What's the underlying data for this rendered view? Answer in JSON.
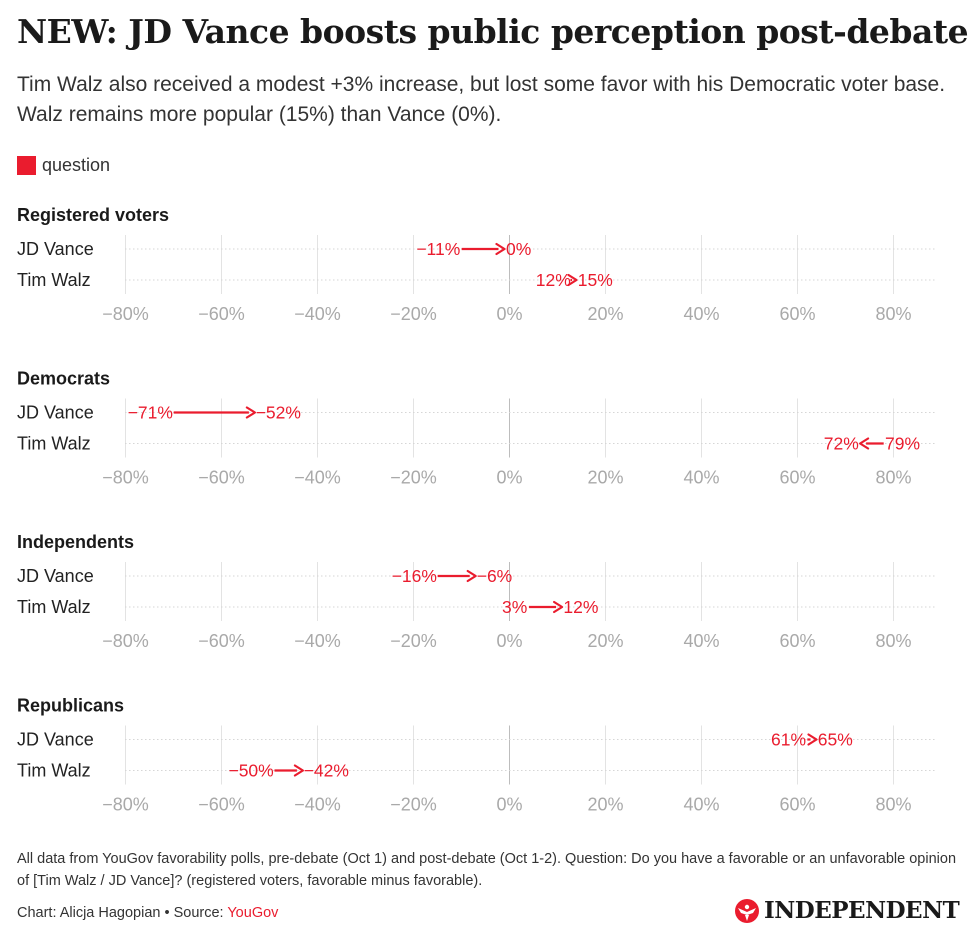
{
  "header": {
    "title": "NEW: JD Vance boosts public perception post-debate",
    "subtitle": "Tim Walz also received a modest +3% increase, but lost some favor with his Democratic voter base. Walz remains more popular (15%) than Vance (0%)."
  },
  "legend": {
    "label": "question"
  },
  "chart_data": {
    "type": "arrow-dot",
    "series_color": "#ea1c2e",
    "x_ticks": [
      -80,
      -60,
      -40,
      -20,
      0,
      20,
      40,
      60,
      80
    ],
    "x_tick_labels": [
      "−80%",
      "−60%",
      "−40%",
      "−20%",
      "0%",
      "20%",
      "40%",
      "60%",
      "80%"
    ],
    "xlim": [
      -83,
      88
    ],
    "panels": [
      {
        "title": "Registered voters",
        "rows": [
          {
            "label": "JD Vance",
            "from": -11,
            "to": 0,
            "from_label": "−11%",
            "to_label": "0%"
          },
          {
            "label": "Tim Walz",
            "from": 12,
            "to": 15,
            "from_label": "12%",
            "to_label": "15%"
          }
        ]
      },
      {
        "title": "Democrats",
        "rows": [
          {
            "label": "JD Vance",
            "from": -71,
            "to": -52,
            "from_label": "−71%",
            "to_label": "−52%"
          },
          {
            "label": "Tim Walz",
            "from": 79,
            "to": 72,
            "from_label": "79%",
            "to_label": "72%"
          }
        ]
      },
      {
        "title": "Independents",
        "rows": [
          {
            "label": "JD Vance",
            "from": -16,
            "to": -6,
            "from_label": "−16%",
            "to_label": "−6%"
          },
          {
            "label": "Tim Walz",
            "from": 3,
            "to": 12,
            "from_label": "3%",
            "to_label": "12%"
          }
        ]
      },
      {
        "title": "Republicans",
        "rows": [
          {
            "label": "JD Vance",
            "from": 61,
            "to": 65,
            "from_label": "61%",
            "to_label": "65%"
          },
          {
            "label": "Tim Walz",
            "from": -50,
            "to": -42,
            "from_label": "−50%",
            "to_label": "−42%"
          }
        ]
      }
    ]
  },
  "footer": {
    "notes": "All data from YouGov favorability polls, pre-debate (Oct 1) and post-debate (Oct 1-2). Question: Do you have a favorable or an unfavorable opinion of [Tim Walz / JD Vance]? (registered voters, favorable minus favorable).",
    "credit_prefix": "Chart: Alicja Hagopian • Source: ",
    "source_name": "YouGov",
    "logo_text": "INDEPENDENT"
  }
}
